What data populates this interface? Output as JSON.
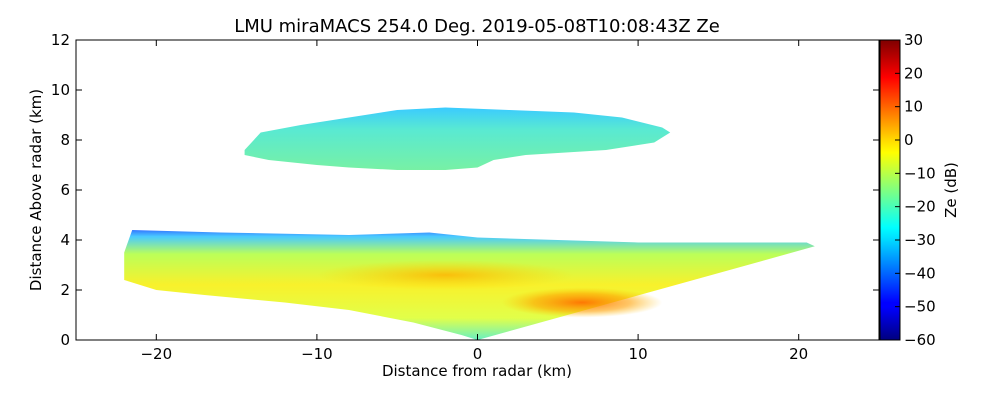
{
  "chart_data": {
    "type": "heatmap",
    "title": "LMU miraMACS 254.0 Deg. 2019-05-08T10:08:43Z  Ze",
    "xlabel": "Distance from radar (km)",
    "ylabel": "Distance Above radar  (km)",
    "xlim": [
      -25,
      25
    ],
    "ylim": [
      0,
      12
    ],
    "xticks": [
      -20,
      -10,
      0,
      10,
      20
    ],
    "xtick_labels": [
      "−20",
      "−10",
      "0",
      "10",
      "20"
    ],
    "yticks": [
      0,
      2,
      4,
      6,
      8,
      10,
      12
    ],
    "ytick_labels": [
      "0",
      "2",
      "4",
      "6",
      "8",
      "10",
      "12"
    ],
    "colorbar": {
      "label": "Ze (dB)",
      "range": [
        -60,
        30
      ],
      "colormap": "jet",
      "ticks": [
        -60,
        -50,
        -40,
        -30,
        -20,
        -10,
        0,
        10,
        20,
        30
      ],
      "tick_labels": [
        "−60",
        "−50",
        "−40",
        "−30",
        "−20",
        "−10",
        "0",
        "10",
        "20",
        "30"
      ]
    },
    "regions": [
      {
        "name": "upper-cloud-layer",
        "x_range_km": [
          -15,
          12
        ],
        "height_range_km": [
          6.8,
          9.5
        ],
        "typical_ze_db": -25,
        "top_ze_db": -32,
        "outline_km": [
          [
            -14.5,
            7.6
          ],
          [
            -13.5,
            8.3
          ],
          [
            -11,
            8.6
          ],
          [
            -8,
            8.9
          ],
          [
            -5,
            9.2
          ],
          [
            -2,
            9.3
          ],
          [
            2,
            9.2
          ],
          [
            6,
            9.1
          ],
          [
            9,
            8.9
          ],
          [
            11.5,
            8.5
          ],
          [
            12,
            8.3
          ],
          [
            11,
            7.9
          ],
          [
            8,
            7.6
          ],
          [
            3,
            7.4
          ],
          [
            1,
            7.2
          ],
          [
            0,
            6.9
          ],
          [
            -2,
            6.8
          ],
          [
            -5,
            6.8
          ],
          [
            -8,
            6.9
          ],
          [
            -10,
            7.0
          ],
          [
            -13,
            7.2
          ],
          [
            -14.5,
            7.4
          ]
        ]
      },
      {
        "name": "lower-precipitation-layer",
        "x_range_km": [
          -22,
          21
        ],
        "height_range_km": [
          0,
          4.4
        ],
        "typical_ze_db": -10,
        "core_ze_db": 8,
        "top_ze_db": -40,
        "outline_km": [
          [
            -21.5,
            4.4
          ],
          [
            -16,
            4.3
          ],
          [
            -8,
            4.2
          ],
          [
            -3,
            4.3
          ],
          [
            0,
            4.1
          ],
          [
            5,
            4.0
          ],
          [
            10,
            3.9
          ],
          [
            15,
            3.9
          ],
          [
            20.5,
            3.9
          ],
          [
            21,
            3.75
          ],
          [
            0,
            0
          ],
          [
            -1,
            0.2
          ],
          [
            -4,
            0.7
          ],
          [
            -8,
            1.2
          ],
          [
            -12,
            1.5
          ],
          [
            -17,
            1.8
          ],
          [
            -20,
            2.0
          ],
          [
            -22,
            2.4
          ],
          [
            -22,
            3.5
          ]
        ]
      }
    ]
  }
}
